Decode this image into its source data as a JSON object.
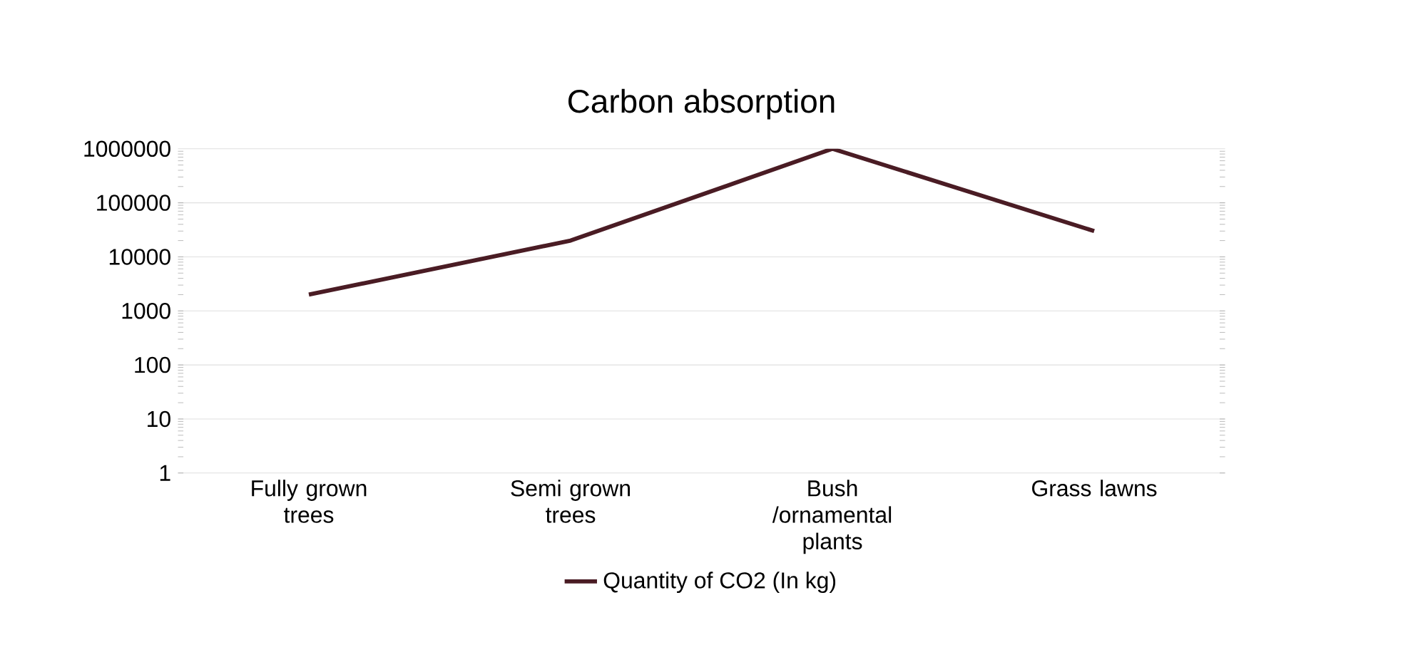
{
  "chart_data": {
    "type": "line",
    "title": "Carbon absorption",
    "categories": [
      "Fully grown trees",
      "Semi grown trees",
      "Bush /ornamental plants",
      "Grass lawns"
    ],
    "series": [
      {
        "name": "Quantity of CO2 (In kg)",
        "color": "#4a1c24",
        "values": [
          2000,
          20000,
          1000000,
          30000
        ]
      }
    ],
    "log": "y",
    "ylim": [
      1,
      1000000
    ],
    "yticks": [
      1,
      10,
      100,
      1000,
      10000,
      100000,
      1000000
    ],
    "grid": "y",
    "legend": "bottom",
    "marker": "none",
    "line_style": "solid"
  }
}
